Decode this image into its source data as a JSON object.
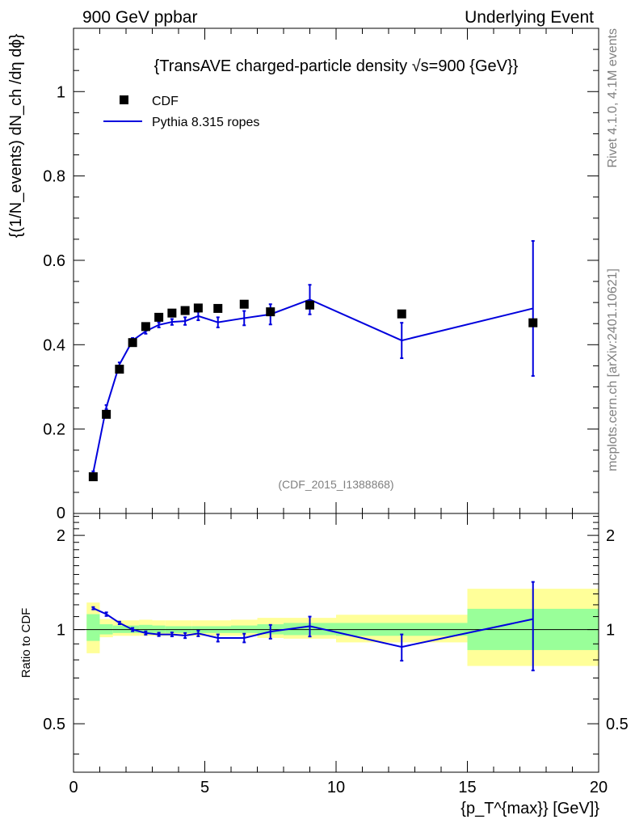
{
  "header": {
    "left": "900 GeV ppbar",
    "right": "Underlying Event"
  },
  "side": {
    "rivet": "Rivet 4.1.0,  4.1M events",
    "mcplots": "mcplots.cern.ch [arXiv:2401.10621]"
  },
  "chart_data": {
    "type": "scatter",
    "title": "{TransAVE charged-particle density √s=900 {GeV}}",
    "analysis_tag": "(CDF_2015_I1388868)",
    "ylabel_main": "{(1/N_events) dN_ch /dη dϕ}",
    "ylabel_ratio": "Ratio to CDF",
    "xlabel": "{p_T^{max}} [GeV]}",
    "xlim": [
      0,
      20
    ],
    "ylim_main": [
      0,
      1.15
    ],
    "ylim_ratio": [
      0.35,
      2.35
    ],
    "x_ticks": [
      "0",
      "5",
      "10",
      "15",
      "20"
    ],
    "y_ticks_main": [
      "0",
      "0.2",
      "0.4",
      "0.6",
      "0.8",
      "1"
    ],
    "y_ticks_ratio": [
      "0.5",
      "1",
      "2"
    ],
    "legend": [
      {
        "name": "CDF",
        "marker": "square",
        "color": "#000000"
      },
      {
        "name": "Pythia 8.315 ropes",
        "marker": "line",
        "color": "#0000dd"
      }
    ],
    "data": {
      "name": "CDF",
      "x": [
        0.75,
        1.25,
        1.75,
        2.25,
        2.75,
        3.25,
        3.75,
        4.25,
        4.75,
        5.5,
        6.5,
        7.5,
        9.0,
        12.5,
        17.5
      ],
      "y": [
        0.087,
        0.235,
        0.342,
        0.405,
        0.443,
        0.465,
        0.475,
        0.481,
        0.487,
        0.486,
        0.496,
        0.478,
        0.494,
        0.473,
        0.452
      ]
    },
    "mc": {
      "name": "Pythia 8.315 ropes",
      "x": [
        0.75,
        1.25,
        1.75,
        2.25,
        2.75,
        3.25,
        3.75,
        4.25,
        4.75,
        5.5,
        6.5,
        7.5,
        9.0,
        12.5,
        17.5
      ],
      "y": [
        0.097,
        0.252,
        0.353,
        0.41,
        0.432,
        0.447,
        0.454,
        0.456,
        0.468,
        0.453,
        0.463,
        0.472,
        0.507,
        0.41,
        0.486
      ],
      "err": [
        0.003,
        0.005,
        0.005,
        0.006,
        0.006,
        0.006,
        0.007,
        0.009,
        0.01,
        0.012,
        0.017,
        0.024,
        0.035,
        0.042,
        0.16
      ]
    },
    "ratio": {
      "x": [
        0.75,
        1.25,
        1.75,
        2.25,
        2.75,
        3.25,
        3.75,
        4.25,
        4.75,
        5.5,
        6.5,
        7.5,
        9.0,
        12.5,
        17.5
      ],
      "y": [
        1.17,
        1.12,
        1.05,
        1.0,
        0.975,
        0.965,
        0.965,
        0.957,
        0.972,
        0.94,
        0.94,
        0.985,
        1.025,
        0.88,
        1.08
      ],
      "err": [
        0.01,
        0.015,
        0.01,
        0.012,
        0.012,
        0.012,
        0.014,
        0.018,
        0.02,
        0.025,
        0.03,
        0.05,
        0.075,
        0.085,
        0.34
      ]
    },
    "bands": {
      "edges": [
        0.5,
        1.0,
        1.5,
        2.0,
        2.5,
        3.0,
        3.5,
        4.0,
        4.5,
        5.0,
        6.0,
        7.0,
        8.0,
        10.0,
        15.0,
        20.0
      ],
      "stat_lo": [
        0.92,
        0.965,
        0.975,
        0.975,
        0.975,
        0.975,
        0.975,
        0.975,
        0.975,
        0.975,
        0.975,
        0.965,
        0.96,
        0.955,
        0.86
      ],
      "stat_hi": [
        1.12,
        1.04,
        1.03,
        1.03,
        1.035,
        1.03,
        1.025,
        1.025,
        1.025,
        1.025,
        1.03,
        1.04,
        1.05,
        1.05,
        1.165
      ],
      "tot_lo": [
        0.84,
        0.945,
        0.955,
        0.955,
        0.955,
        0.955,
        0.955,
        0.955,
        0.955,
        0.955,
        0.955,
        0.94,
        0.935,
        0.91,
        0.765
      ],
      "tot_hi": [
        1.22,
        1.08,
        1.07,
        1.07,
        1.075,
        1.07,
        1.07,
        1.07,
        1.07,
        1.07,
        1.075,
        1.09,
        1.09,
        1.115,
        1.35
      ]
    },
    "colors": {
      "stat_band": "#99ff99",
      "total_band": "#ffff99",
      "mc_line": "#0000dd",
      "data_marker": "#000000",
      "reference_line": "#000000"
    }
  }
}
